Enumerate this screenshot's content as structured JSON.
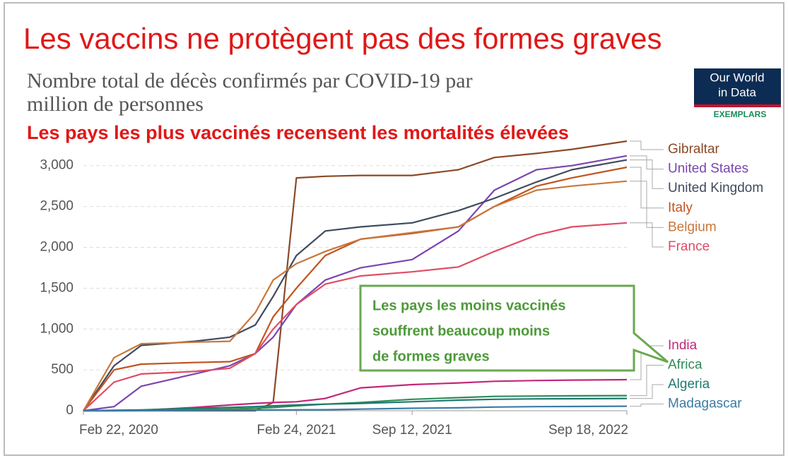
{
  "chart_data": {
    "type": "line",
    "title": "Les vaccins ne protègent pas des formes graves",
    "subtitle": [
      "Nombre total de décès confirmés par COVID-19 par",
      "million de personnes"
    ],
    "logo": [
      "Our World",
      "in Data",
      "EXEMPLARS"
    ],
    "annotation_top": "Les pays les plus vaccinés recensent les mortalités élevées",
    "annotation_box": [
      "Les pays les moins vaccinés",
      "souffrent beaucoup moins",
      "de formes graves"
    ],
    "x": [
      "2020-02-22",
      "2020-04-15",
      "2020-06-01",
      "2020-09-01",
      "2020-11-01",
      "2020-12-15",
      "2021-01-15",
      "2021-02-24",
      "2021-04-15",
      "2021-06-15",
      "2021-09-12",
      "2021-12-01",
      "2022-02-01",
      "2022-04-15",
      "2022-06-15",
      "2022-09-18"
    ],
    "xlim": [
      "2020-02-22",
      "2022-09-18"
    ],
    "xticks": [
      {
        "value": "2020-02-22",
        "label": "Feb 22, 2020"
      },
      {
        "value": "2021-02-24",
        "label": "Feb 24, 2021"
      },
      {
        "value": "2021-09-12",
        "label": "Sep 12, 2021"
      },
      {
        "value": "2022-09-18",
        "label": "Sep 18, 2022"
      }
    ],
    "ylim": [
      0,
      3300
    ],
    "yticks": [
      0,
      500,
      {
        "value": 1000,
        "label": "1,000"
      },
      {
        "value": 1500,
        "label": "1,500"
      },
      {
        "value": 2000,
        "label": "2,000"
      },
      {
        "value": 2500,
        "label": "2,500"
      },
      {
        "value": 3000,
        "label": "3,000"
      }
    ],
    "grid": true,
    "series": [
      {
        "name": "Gibraltar",
        "color": "#8a4a26",
        "values": [
          0,
          0,
          0,
          0,
          0,
          0,
          100,
          2850,
          2870,
          2880,
          2880,
          2950,
          3100,
          3150,
          3200,
          3300
        ]
      },
      {
        "name": "United States",
        "color": "#7a45b0",
        "values": [
          0,
          50,
          300,
          450,
          550,
          700,
          900,
          1300,
          1600,
          1750,
          1850,
          2200,
          2700,
          2950,
          3000,
          3120
        ]
      },
      {
        "name": "United Kingdom",
        "color": "#3f4b5e",
        "values": [
          0,
          550,
          800,
          850,
          900,
          1050,
          1400,
          1900,
          2200,
          2250,
          2300,
          2450,
          2600,
          2800,
          2950,
          3070
        ]
      },
      {
        "name": "Italy",
        "color": "#c0541d",
        "values": [
          0,
          500,
          570,
          590,
          600,
          700,
          1150,
          1500,
          1900,
          2100,
          2170,
          2250,
          2500,
          2750,
          2850,
          2980
        ]
      },
      {
        "name": "Belgium",
        "color": "#c8773a",
        "values": [
          0,
          650,
          820,
          840,
          850,
          1200,
          1600,
          1800,
          1950,
          2100,
          2180,
          2250,
          2500,
          2700,
          2750,
          2810
        ]
      },
      {
        "name": "France",
        "color": "#e04c64",
        "values": [
          0,
          350,
          450,
          480,
          520,
          700,
          1000,
          1300,
          1550,
          1650,
          1700,
          1760,
          1950,
          2150,
          2250,
          2300
        ]
      },
      {
        "name": "India",
        "color": "#c0287a",
        "values": [
          0,
          0,
          5,
          40,
          70,
          90,
          100,
          110,
          150,
          280,
          320,
          340,
          360,
          370,
          375,
          380
        ]
      },
      {
        "name": "Africa",
        "color": "#2e8b57",
        "values": [
          0,
          2,
          5,
          15,
          20,
          30,
          40,
          60,
          80,
          100,
          140,
          160,
          175,
          180,
          182,
          185
        ]
      },
      {
        "name": "Algeria",
        "color": "#1f7a70",
        "values": [
          0,
          5,
          10,
          30,
          40,
          50,
          60,
          70,
          80,
          90,
          110,
          130,
          140,
          145,
          147,
          150
        ]
      },
      {
        "name": "Madagascar",
        "color": "#3a7ca5",
        "values": [
          0,
          0,
          1,
          5,
          8,
          9,
          10,
          11,
          12,
          20,
          30,
          35,
          45,
          50,
          52,
          55
        ]
      }
    ]
  }
}
